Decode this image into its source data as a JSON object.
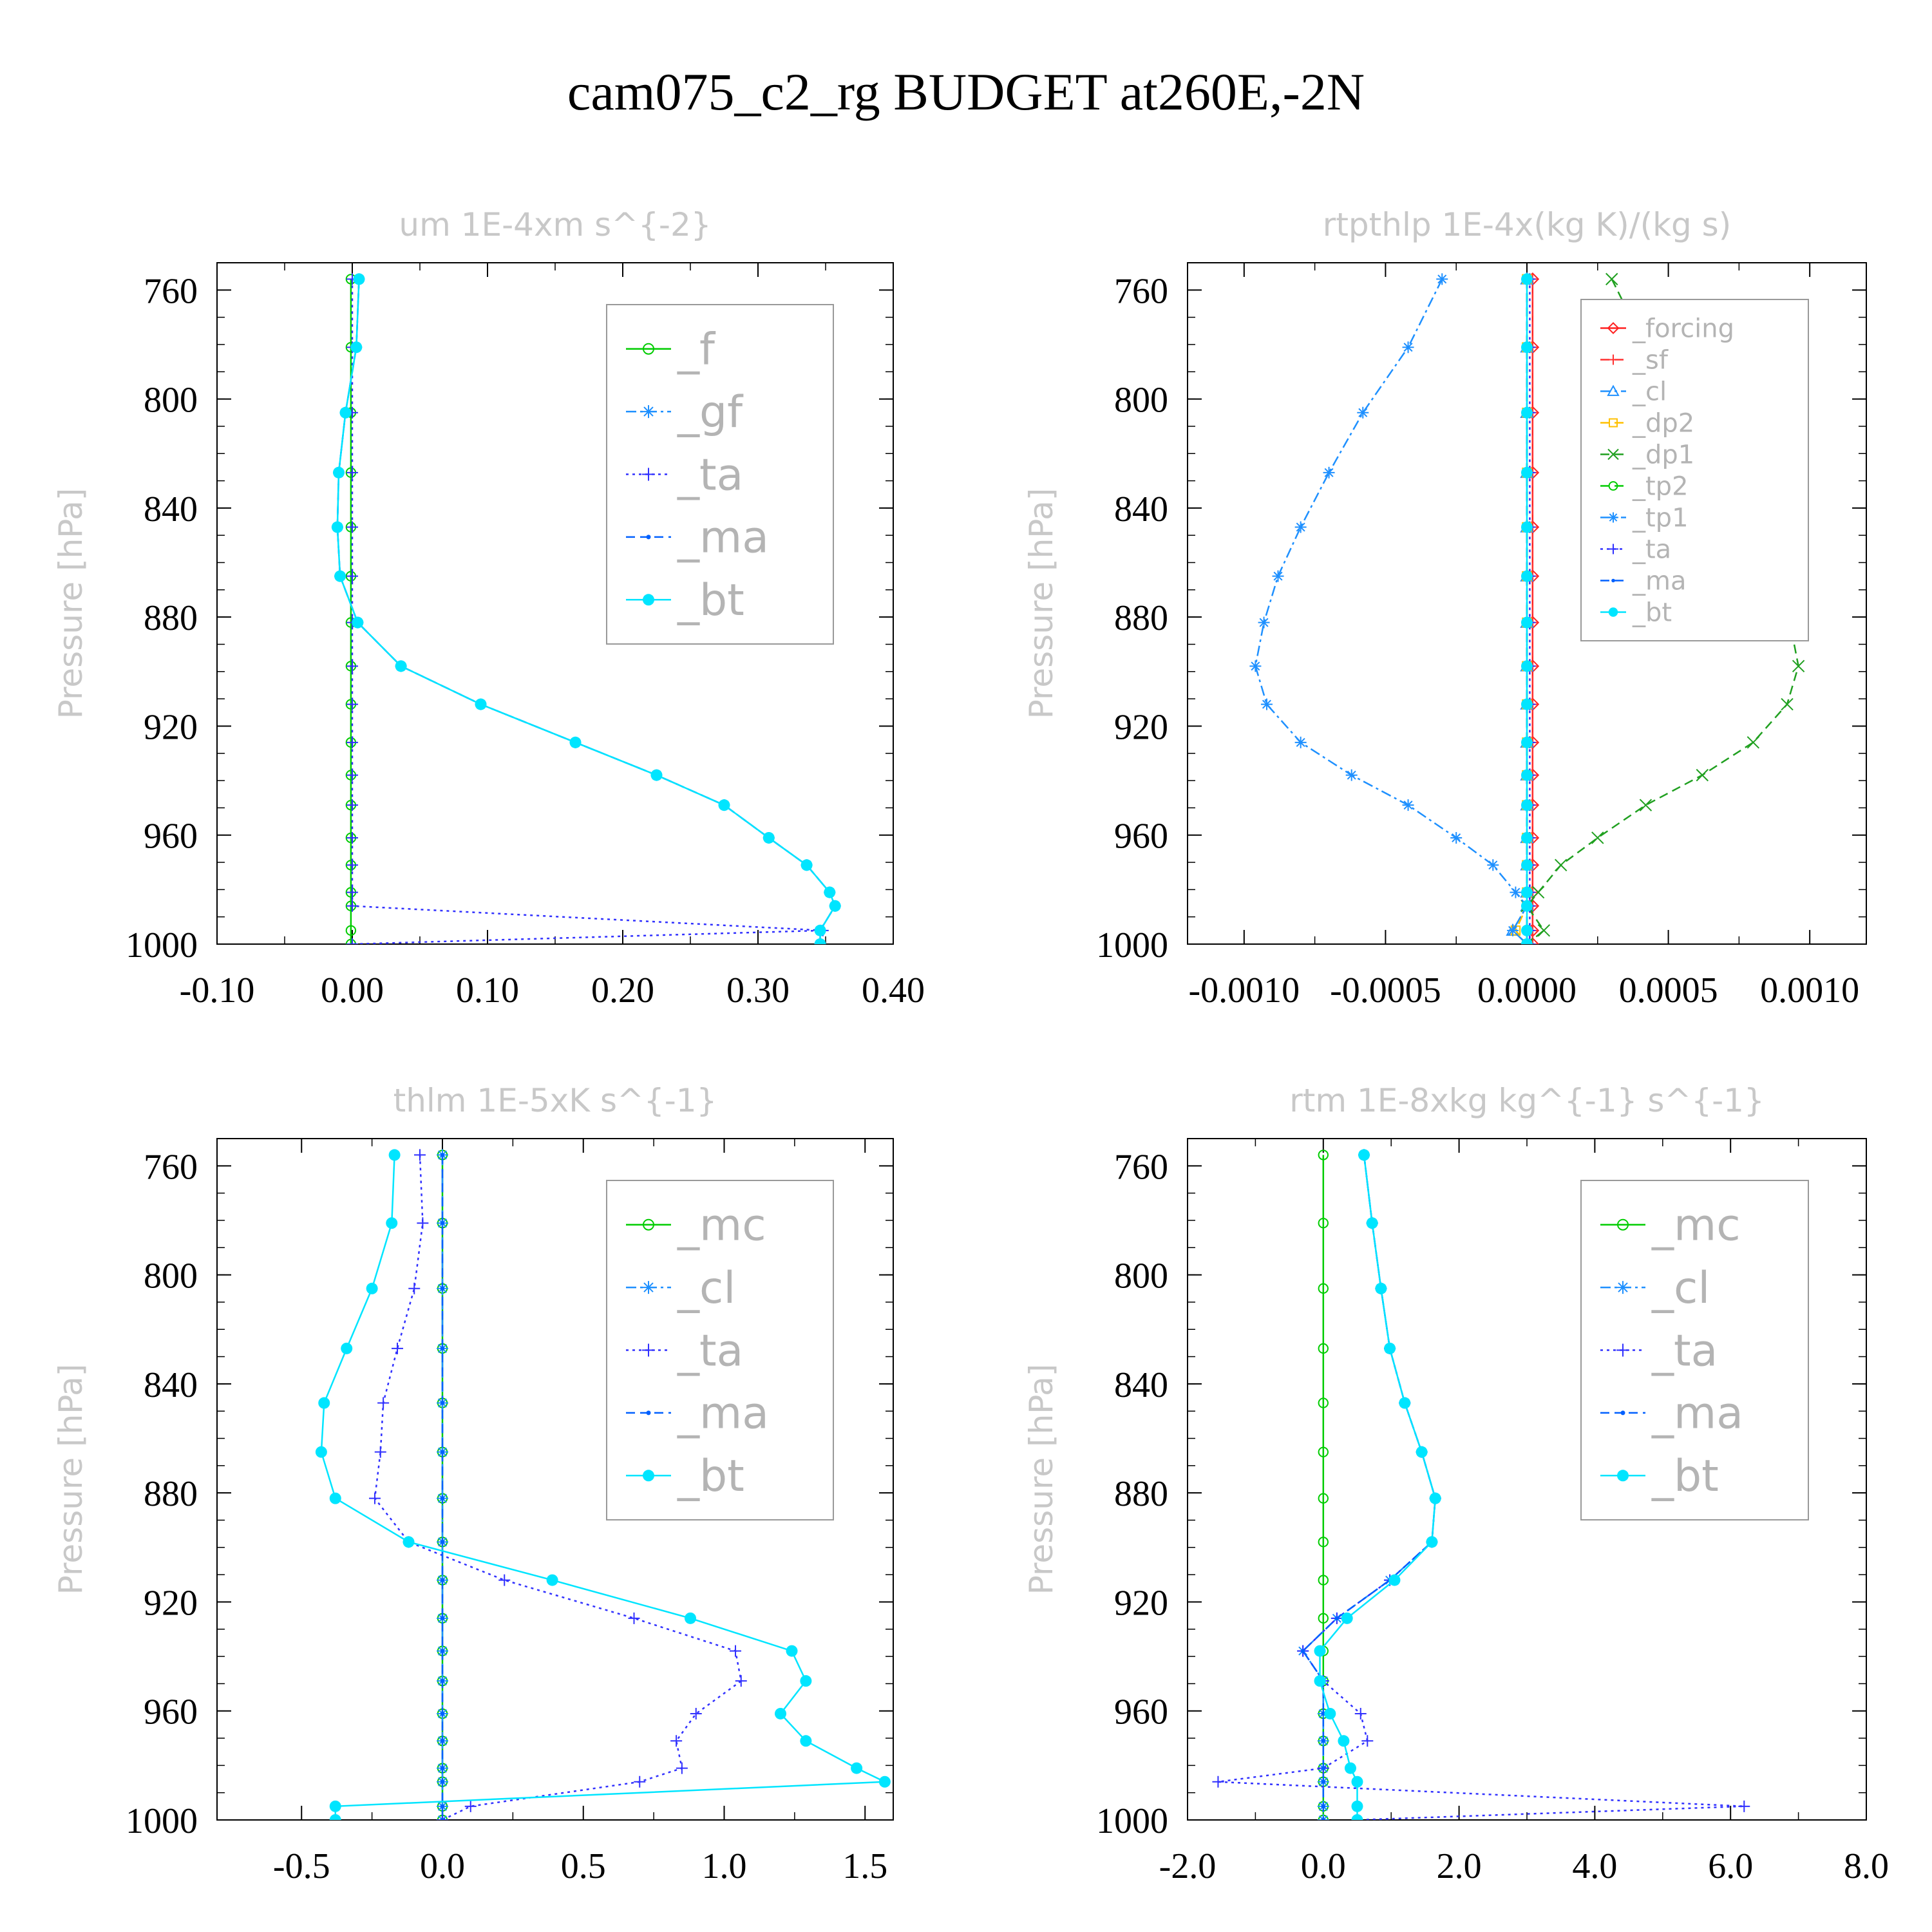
{
  "title": "cam075_c2_rg  BUDGET at260E,-2N",
  "colors": {
    "f": "#00cc00",
    "gf": "#1e90ff",
    "ta": "#3030ff",
    "ma": "#0060ff",
    "bt": "#00e5ff",
    "mc": "#00cc00",
    "cl": "#1e90ff",
    "forcing": "#ff2020",
    "sf": "#ff3030",
    "dp2": "#ffc000",
    "dp1": "#20a020",
    "tp2": "#00cc00",
    "tp1": "#1e90ff",
    "frame": "#000000",
    "zero_line": "#00aa00"
  },
  "chart_data": [
    {
      "type": "line",
      "title": "um  1E-4xm s^{-2}",
      "xlabel": "",
      "ylabel": "Pressure [hPa]",
      "xlim": [
        -0.1,
        0.4
      ],
      "ylim": [
        1000,
        750
      ],
      "y_inverted": true,
      "xticks": [
        "-0.10",
        "0.00",
        "0.10",
        "0.20",
        "0.30",
        "0.40"
      ],
      "yticks": [
        "760",
        "800",
        "840",
        "880",
        "920",
        "960",
        "1000"
      ],
      "legend_position": "top-right",
      "pressure": [
        756,
        781,
        805,
        827,
        847,
        865,
        882,
        898,
        912,
        926,
        938,
        949,
        961,
        971,
        981,
        986,
        995,
        1000
      ],
      "series": [
        {
          "name": "_f",
          "key": "f",
          "marker": "open-circle",
          "dash": "solid",
          "values": [
            -0.001,
            -0.001,
            -0.001,
            -0.001,
            -0.001,
            -0.001,
            -0.001,
            -0.001,
            -0.001,
            -0.001,
            -0.001,
            -0.001,
            -0.001,
            -0.001,
            -0.001,
            -0.001,
            -0.001,
            -0.001
          ]
        },
        {
          "name": "_gf",
          "key": "gf",
          "marker": "star",
          "dash": "dashdot",
          "values": [
            0.005,
            0.003,
            -0.005,
            -0.01,
            -0.011,
            -0.009,
            0.004,
            0.036,
            0.095,
            0.165,
            0.225,
            0.275,
            0.308,
            0.336,
            0.353,
            0.357,
            0.346,
            0.346
          ]
        },
        {
          "name": "_ta",
          "key": "ta",
          "marker": "plus",
          "dash": "dotted",
          "values": [
            0,
            0,
            0,
            0,
            0,
            0,
            0,
            0,
            0,
            0,
            0,
            0,
            0,
            0,
            0,
            0,
            0.348,
            0.0
          ]
        },
        {
          "name": "_ma",
          "key": "ma",
          "marker": "dot",
          "dash": "dashed",
          "values": [
            0.005,
            0.003,
            -0.005,
            -0.01,
            -0.011,
            -0.009,
            0.004,
            0.036,
            0.095,
            0.165,
            0.225,
            0.275,
            0.308,
            0.336,
            0.353,
            0.357,
            0.346,
            0.346
          ]
        },
        {
          "name": "_bt",
          "key": "bt",
          "marker": "filled-circle",
          "dash": "solid",
          "values": [
            0.005,
            0.003,
            -0.005,
            -0.01,
            -0.011,
            -0.009,
            0.004,
            0.036,
            0.095,
            0.165,
            0.225,
            0.275,
            0.308,
            0.336,
            0.353,
            0.357,
            0.346,
            0.346
          ]
        }
      ]
    },
    {
      "type": "line",
      "title": "rtpthlp  1E-4x(kg K)/(kg s)",
      "xlabel": "",
      "ylabel": "Pressure [hPa]",
      "xlim": [
        -0.0012,
        0.0012
      ],
      "ylim": [
        1000,
        750
      ],
      "y_inverted": true,
      "xticks": [
        "-0.0010",
        "-0.0005",
        "0.0000",
        "0.0005",
        "0.0010"
      ],
      "yticks": [
        "760",
        "800",
        "840",
        "880",
        "920",
        "960",
        "1000"
      ],
      "legend_position": "top-right",
      "pressure": [
        756,
        781,
        805,
        827,
        847,
        865,
        882,
        898,
        912,
        926,
        938,
        949,
        961,
        971,
        981,
        986,
        995,
        1000
      ],
      "series": [
        {
          "name": "_forcing",
          "key": "forcing",
          "marker": "open-diamond",
          "dash": "solid",
          "values": [
            2e-05,
            2e-05,
            2e-05,
            2e-05,
            2e-05,
            2e-05,
            2e-05,
            2e-05,
            2e-05,
            2e-05,
            2e-05,
            2e-05,
            2e-05,
            2e-05,
            2e-05,
            2e-05,
            2e-05,
            2e-05
          ]
        },
        {
          "name": "_sf",
          "key": "sf",
          "marker": "plus",
          "dash": "dashed",
          "values": [
            2e-05,
            2e-05,
            2e-05,
            2e-05,
            2e-05,
            2e-05,
            2e-05,
            2e-05,
            2e-05,
            2e-05,
            2e-05,
            2e-05,
            2e-05,
            2e-05,
            2e-05,
            2e-05,
            2e-05,
            2e-05
          ]
        },
        {
          "name": "_cl",
          "key": "cl",
          "marker": "triangle",
          "dash": "dashdot",
          "values": [
            0,
            0,
            0,
            0,
            0,
            0,
            0,
            0,
            0,
            0,
            0,
            0,
            0,
            0,
            0,
            0,
            -5e-05,
            0
          ]
        },
        {
          "name": "_dp2",
          "key": "dp2",
          "marker": "square",
          "dash": "dashed",
          "values": [
            0,
            0,
            0,
            0,
            0,
            0,
            0,
            0,
            0,
            0,
            0,
            0,
            0,
            0,
            0,
            0,
            -4e-05,
            0
          ]
        },
        {
          "name": "_dp1",
          "key": "dp1",
          "marker": "x",
          "dash": "dashed",
          "values": [
            0.0003,
            0.00042,
            0.00058,
            0.0007,
            0.0008,
            0.00088,
            0.00093,
            0.00096,
            0.00092,
            0.0008,
            0.00062,
            0.00042,
            0.00025,
            0.00012,
            4e-05,
            0.0,
            6e-05,
            0.0
          ]
        },
        {
          "name": "_tp2",
          "key": "tp2",
          "marker": "open-circle",
          "dash": "dashed",
          "values": [
            0,
            0,
            0,
            0,
            0,
            0,
            0,
            0,
            0,
            0,
            0,
            0,
            0,
            0,
            0,
            0,
            0,
            0
          ]
        },
        {
          "name": "_tp1",
          "key": "tp1",
          "marker": "star",
          "dash": "dashdot",
          "values": [
            -0.0003,
            -0.00042,
            -0.00058,
            -0.0007,
            -0.0008,
            -0.00088,
            -0.00093,
            -0.00096,
            -0.00092,
            -0.0008,
            -0.00062,
            -0.00042,
            -0.00025,
            -0.00012,
            -4e-05,
            0.0,
            -5e-05,
            0.0
          ]
        },
        {
          "name": "_ta",
          "key": "ta",
          "marker": "plus",
          "dash": "dotted",
          "values": [
            1e-05,
            1e-05,
            1e-05,
            1e-05,
            1e-05,
            1e-05,
            1e-05,
            1e-05,
            1e-05,
            1e-05,
            1e-05,
            1e-05,
            1e-05,
            1e-05,
            1e-05,
            1e-05,
            1e-05,
            1e-05
          ]
        },
        {
          "name": "_ma",
          "key": "ma",
          "marker": "dot",
          "dash": "dashed",
          "values": [
            0,
            0,
            0,
            0,
            0,
            0,
            0,
            0,
            0,
            0,
            0,
            0,
            0,
            0,
            0,
            0,
            0,
            0
          ]
        },
        {
          "name": "_bt",
          "key": "bt",
          "marker": "filled-circle",
          "dash": "solid",
          "values": [
            0,
            0,
            0,
            0,
            0,
            0,
            0,
            0,
            0,
            0,
            0,
            0,
            0,
            0,
            0,
            0,
            0,
            0
          ]
        }
      ]
    },
    {
      "type": "line",
      "title": "thlm  1E-5xK s^{-1}",
      "xlabel": "",
      "ylabel": "Pressure [hPa]",
      "xlim": [
        -0.8,
        1.6
      ],
      "ylim": [
        1000,
        750
      ],
      "y_inverted": true,
      "xticks": [
        "-0.5",
        "0.0",
        "0.5",
        "1.0",
        "1.5"
      ],
      "yticks": [
        "760",
        "800",
        "840",
        "880",
        "920",
        "960",
        "1000"
      ],
      "legend_position": "top-right",
      "pressure": [
        756,
        781,
        805,
        827,
        847,
        865,
        882,
        898,
        912,
        926,
        938,
        949,
        961,
        971,
        981,
        986,
        995,
        1000
      ],
      "series": [
        {
          "name": "_mc",
          "key": "mc",
          "marker": "open-circle",
          "dash": "solid",
          "values": [
            0,
            0,
            0,
            0,
            0,
            0,
            0,
            0,
            0,
            0,
            0,
            0,
            0,
            0,
            0,
            0,
            0,
            0
          ]
        },
        {
          "name": "_cl",
          "key": "cl",
          "marker": "star",
          "dash": "dashdot",
          "values": [
            0,
            0,
            0,
            0,
            0,
            0,
            0,
            0,
            0,
            0,
            0,
            0,
            0,
            0,
            0,
            0,
            0,
            0
          ]
        },
        {
          "name": "_ta",
          "key": "ta",
          "marker": "plus",
          "dash": "dotted",
          "values": [
            -0.08,
            -0.07,
            -0.1,
            -0.16,
            -0.21,
            -0.22,
            -0.24,
            -0.12,
            0.22,
            0.68,
            1.04,
            1.06,
            0.9,
            0.83,
            0.85,
            0.7,
            0.1,
            0.0
          ]
        },
        {
          "name": "_ma",
          "key": "ma",
          "marker": "dot",
          "dash": "dashed",
          "values": [
            0,
            0,
            0,
            0,
            0,
            0,
            0,
            0,
            0,
            0,
            0,
            0,
            0,
            0,
            0,
            0,
            0,
            0
          ]
        },
        {
          "name": "_bt",
          "key": "bt",
          "marker": "filled-circle",
          "dash": "solid",
          "values": [
            -0.17,
            -0.18,
            -0.25,
            -0.34,
            -0.42,
            -0.43,
            -0.38,
            -0.12,
            0.39,
            0.88,
            1.24,
            1.29,
            1.2,
            1.29,
            1.47,
            1.57,
            -0.38,
            -0.38
          ]
        }
      ]
    },
    {
      "type": "line",
      "title": "rtm  1E-8xkg kg^{-1} s^{-1}",
      "xlabel": "",
      "ylabel": "Pressure [hPa]",
      "xlim": [
        -2.0,
        8.0
      ],
      "ylim": [
        1000,
        750
      ],
      "y_inverted": true,
      "xticks": [
        "-2.0",
        "0.0",
        "2.0",
        "4.0",
        "6.0",
        "8.0"
      ],
      "yticks": [
        "760",
        "800",
        "840",
        "880",
        "920",
        "960",
        "1000"
      ],
      "legend_position": "top-right",
      "pressure": [
        756,
        781,
        805,
        827,
        847,
        865,
        882,
        898,
        912,
        926,
        938,
        949,
        961,
        971,
        981,
        986,
        995,
        1000
      ],
      "series": [
        {
          "name": "_mc",
          "key": "mc",
          "marker": "open-circle",
          "dash": "solid",
          "values": [
            0,
            0,
            0,
            0,
            0,
            0,
            0,
            0,
            0,
            0,
            0,
            0,
            0,
            0,
            0,
            0,
            0,
            0
          ]
        },
        {
          "name": "_cl",
          "key": "cl",
          "marker": "star",
          "dash": "dashdot",
          "values": [
            0.6,
            0.72,
            0.85,
            0.98,
            1.2,
            1.45,
            1.65,
            1.6,
            0.98,
            0.2,
            -0.3,
            0.0,
            0.0,
            0.0,
            0.0,
            0.0,
            0.0,
            0.0
          ]
        },
        {
          "name": "_ta",
          "key": "ta",
          "marker": "plus",
          "dash": "dotted",
          "values": [
            0.6,
            0.72,
            0.85,
            0.98,
            1.2,
            1.45,
            1.65,
            1.6,
            0.98,
            0.2,
            -0.3,
            0.0,
            0.55,
            0.65,
            0.0,
            -1.55,
            6.2,
            0.5
          ]
        },
        {
          "name": "_ma",
          "key": "ma",
          "marker": "dot",
          "dash": "dashed",
          "values": [
            0.6,
            0.72,
            0.85,
            0.98,
            1.2,
            1.45,
            1.65,
            1.6,
            0.98,
            0.2,
            -0.3,
            0.0,
            0.0,
            0.0,
            0.0,
            0.0,
            0.0,
            0.0
          ]
        },
        {
          "name": "_bt",
          "key": "bt",
          "marker": "filled-circle",
          "dash": "solid",
          "values": [
            0.6,
            0.72,
            0.85,
            0.98,
            1.2,
            1.45,
            1.65,
            1.6,
            1.05,
            0.35,
            -0.05,
            -0.05,
            0.1,
            0.3,
            0.4,
            0.5,
            0.5,
            0.5
          ]
        }
      ]
    }
  ]
}
